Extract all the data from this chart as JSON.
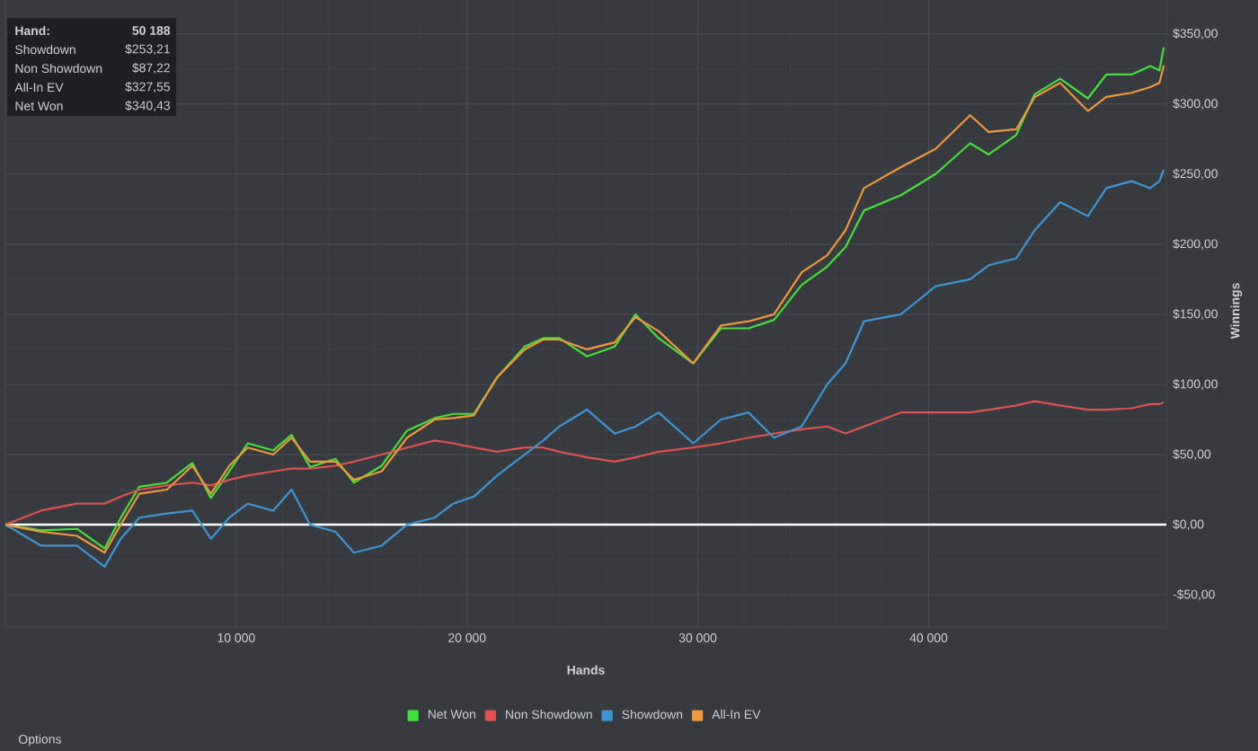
{
  "chart_data": {
    "type": "line",
    "xlabel": "Hands",
    "ylabel": "Winnings",
    "x": [
      0,
      1550,
      3100,
      4300,
      5000,
      5800,
      7000,
      8100,
      8900,
      9700,
      10500,
      11600,
      12400,
      13200,
      14300,
      15100,
      16300,
      17400,
      18600,
      19400,
      20300,
      21300,
      22500,
      23300,
      24000,
      25200,
      26400,
      27300,
      28300,
      29800,
      31000,
      32200,
      33300,
      34500,
      35600,
      36400,
      37200,
      38800,
      40300,
      41800,
      42600,
      43800,
      44600,
      45700,
      46900,
      47700,
      48800,
      49600,
      50000,
      50188
    ],
    "series": [
      {
        "name": "Net Won",
        "color": "#44e03a",
        "values": [
          0,
          -4,
          -3,
          -17,
          5,
          27,
          30,
          44,
          19,
          38,
          58,
          53,
          64,
          41,
          47,
          30,
          42,
          67,
          76,
          79,
          79,
          105,
          127,
          133,
          133,
          120,
          127,
          150,
          133,
          115,
          140,
          140,
          146,
          171,
          184,
          198,
          224,
          235,
          250,
          272,
          264,
          278,
          307,
          318,
          304,
          321,
          321,
          327,
          324,
          340.43
        ]
      },
      {
        "name": "Non Showdown",
        "color": "#e05050",
        "values": [
          0,
          10,
          15,
          15,
          20,
          25,
          28,
          30,
          28,
          32,
          35,
          38,
          40,
          40,
          42,
          45,
          50,
          55,
          60,
          58,
          55,
          52,
          55,
          55,
          52,
          48,
          45,
          48,
          52,
          55,
          58,
          62,
          65,
          68,
          70,
          65,
          70,
          80,
          80,
          80,
          82,
          85,
          88,
          85,
          82,
          82,
          83,
          86,
          86,
          87.22
        ]
      },
      {
        "name": "Showdown",
        "color": "#3d95d6",
        "values": [
          0,
          -15,
          -15,
          -30,
          -10,
          5,
          8,
          10,
          -10,
          5,
          15,
          10,
          25,
          0,
          -5,
          -20,
          -15,
          0,
          5,
          15,
          20,
          35,
          50,
          60,
          70,
          82,
          65,
          70,
          80,
          58,
          75,
          80,
          62,
          70,
          100,
          115,
          145,
          150,
          170,
          175,
          185,
          190,
          210,
          230,
          220,
          240,
          245,
          240,
          245,
          253.21
        ]
      },
      {
        "name": "All-In EV",
        "color": "#f0963c",
        "values": [
          0,
          -5,
          -8,
          -20,
          0,
          22,
          25,
          42,
          22,
          42,
          55,
          50,
          62,
          45,
          45,
          32,
          38,
          62,
          75,
          76,
          78,
          105,
          125,
          132,
          132,
          125,
          130,
          148,
          138,
          115,
          142,
          145,
          150,
          180,
          192,
          210,
          240,
          255,
          268,
          292,
          280,
          282,
          305,
          315,
          295,
          305,
          308,
          312,
          315,
          327.55
        ]
      }
    ],
    "xlim": [
      0,
      50300
    ],
    "ylim": [
      -73,
      378
    ],
    "xticks": [
      {
        "value": 10000,
        "label": "10 000"
      },
      {
        "value": 20000,
        "label": "20 000"
      },
      {
        "value": 30000,
        "label": "30 000"
      },
      {
        "value": 40000,
        "label": "40 000"
      }
    ],
    "yticks": [
      {
        "value": -50,
        "label": "-$50,00"
      },
      {
        "value": 0,
        "label": "$0,00"
      },
      {
        "value": 50,
        "label": "$50,00"
      },
      {
        "value": 100,
        "label": "$100,00"
      },
      {
        "value": 150,
        "label": "$150,00"
      },
      {
        "value": 200,
        "label": "$200,00"
      },
      {
        "value": 250,
        "label": "$250,00"
      },
      {
        "value": 300,
        "label": "$300,00"
      },
      {
        "value": 350,
        "label": "$350,00"
      }
    ],
    "ref_lines": [
      {
        "axis": "y",
        "value": 0,
        "color": "#ffffff"
      }
    ],
    "grid": true,
    "legend": "bottom",
    "line_style": "solid",
    "annotations": [
      "Hand:",
      "50 188",
      "Showdown",
      "$253,21",
      "Non Showdown",
      "$87,22",
      "All-In EV",
      "$327,55",
      "Net Won",
      "$340,43",
      "Options"
    ]
  }
}
